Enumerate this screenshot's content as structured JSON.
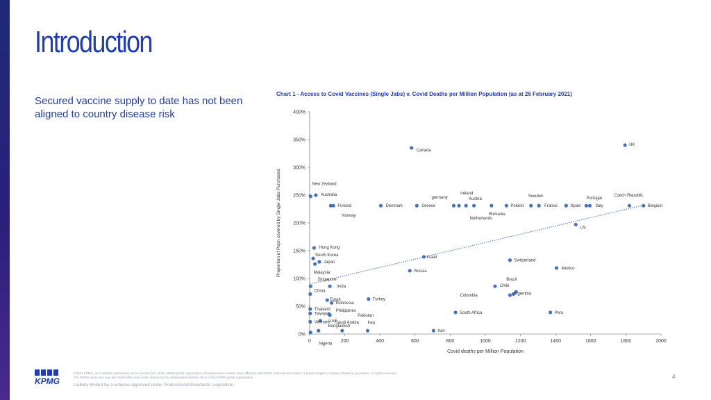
{
  "slide": {
    "title": "Introduction",
    "subtitle": "Secured vaccine supply to date has not been aligned to country disease risk",
    "page_number": "4",
    "footer": {
      "disclaimer_1": "©2021 KPMG, an Australian partnership and a member firm of the KPMG global organisation of independent member firms affiliated with KPMG International Limited, a private English company limited by guarantee. All rights reserved.",
      "disclaimer_2": "The KPMG name and logo are trademarks used under license by the independent member firms of the KPMG global organisation.",
      "liability": "Liability limited by a scheme approved under Professional Standards Legislation.",
      "logo_text": "KPMG"
    }
  },
  "colors": {
    "accent": "#1f3db8",
    "point": "#4472c4",
    "trend": "#4472c4"
  },
  "chart_data": {
    "type": "scatter",
    "title": "Chart 1 - Access to Covid Vaccines (Single Jabs) v. Covid Deaths per Million Population (as at 26 February 2021)",
    "xlabel": "Covid deaths per Million Population",
    "ylabel": "Proportion of Popn covered by Single Jabs Purchased",
    "xlim": [
      0,
      2000
    ],
    "ylim": [
      0,
      400
    ],
    "xticks": [
      "0",
      "200",
      "400",
      "600",
      "800",
      "1000",
      "1200",
      "1400",
      "1600",
      "1800",
      "2000"
    ],
    "yticks": [
      "0%",
      "50%",
      "100%",
      "150%",
      "200%",
      "250%",
      "300%",
      "350%",
      "400%"
    ],
    "trendline": {
      "x": [
        0,
        1900
      ],
      "y": [
        90,
        232
      ]
    },
    "points": [
      {
        "label": "UK",
        "x": 1795,
        "y": 340
      },
      {
        "label": "Canada",
        "x": 580,
        "y": 335
      },
      {
        "label": "New Zealand",
        "x": 5,
        "y": 248
      },
      {
        "label": "Australia",
        "x": 35,
        "y": 250
      },
      {
        "label": "Finland",
        "x": 120,
        "y": 231
      },
      {
        "label": "Norway",
        "x": 135,
        "y": 231
      },
      {
        "label": "Denmark",
        "x": 405,
        "y": 231
      },
      {
        "label": "Greece",
        "x": 610,
        "y": 231
      },
      {
        "label": "germany",
        "x": 820,
        "y": 231
      },
      {
        "label": "Ireland",
        "x": 850,
        "y": 231
      },
      {
        "label": "Austria",
        "x": 890,
        "y": 231
      },
      {
        "label": "Netherlands",
        "x": 935,
        "y": 231
      },
      {
        "label": "Romania",
        "x": 1035,
        "y": 231
      },
      {
        "label": "Poland",
        "x": 1120,
        "y": 231
      },
      {
        "label": "Sweden",
        "x": 1260,
        "y": 231
      },
      {
        "label": "France",
        "x": 1305,
        "y": 231
      },
      {
        "label": "Spain",
        "x": 1460,
        "y": 231
      },
      {
        "label": "Portugal",
        "x": 1575,
        "y": 231
      },
      {
        "label": "Italy",
        "x": 1595,
        "y": 231
      },
      {
        "label": "Czech Republic",
        "x": 1820,
        "y": 231
      },
      {
        "label": "Belgium",
        "x": 1900,
        "y": 231
      },
      {
        "label": "US",
        "x": 1515,
        "y": 197
      },
      {
        "label": "Hong Kong",
        "x": 25,
        "y": 155
      },
      {
        "label": "South Korea",
        "x": 20,
        "y": 136
      },
      {
        "label": "Japan",
        "x": 55,
        "y": 130
      },
      {
        "label": "Malaysia",
        "x": 30,
        "y": 126
      },
      {
        "label": "Israel",
        "x": 650,
        "y": 139
      },
      {
        "label": "Switzerland",
        "x": 1140,
        "y": 133
      },
      {
        "label": "Mexico",
        "x": 1405,
        "y": 119
      },
      {
        "label": "Russia",
        "x": 570,
        "y": 114
      },
      {
        "label": "Singapore",
        "x": 5,
        "y": 86
      },
      {
        "label": "India",
        "x": 115,
        "y": 86
      },
      {
        "label": "Chile",
        "x": 1055,
        "y": 86
      },
      {
        "label": "Brazil",
        "x": 1175,
        "y": 76
      },
      {
        "label": "Argentina",
        "x": 1160,
        "y": 72
      },
      {
        "label": "Colombia",
        "x": 1140,
        "y": 70
      },
      {
        "label": "China",
        "x": 3,
        "y": 72
      },
      {
        "label": "Egypt",
        "x": 100,
        "y": 61
      },
      {
        "label": "Turkey",
        "x": 335,
        "y": 63
      },
      {
        "label": "Indonesia",
        "x": 125,
        "y": 56
      },
      {
        "label": "Thailand",
        "x": 3,
        "y": 45
      },
      {
        "label": "Taiwan",
        "x": 3,
        "y": 37
      },
      {
        "label": "Philippines",
        "x": 110,
        "y": 36
      },
      {
        "label": "Pakistan",
        "x": 115,
        "y": 34
      },
      {
        "label": "UAE",
        "x": 60,
        "y": 24
      },
      {
        "label": "South Africa",
        "x": 830,
        "y": 39
      },
      {
        "label": "Peru",
        "x": 1370,
        "y": 39
      },
      {
        "label": "Vietnam",
        "x": 3,
        "y": 22
      },
      {
        "label": "Bangladesh",
        "x": 50,
        "y": 6
      },
      {
        "label": "Saudi Arabia",
        "x": 185,
        "y": 6
      },
      {
        "label": "Iraq",
        "x": 330,
        "y": 6
      },
      {
        "label": "Iran",
        "x": 705,
        "y": 6
      },
      {
        "label": "Nigeria",
        "x": 5,
        "y": 3
      }
    ]
  }
}
